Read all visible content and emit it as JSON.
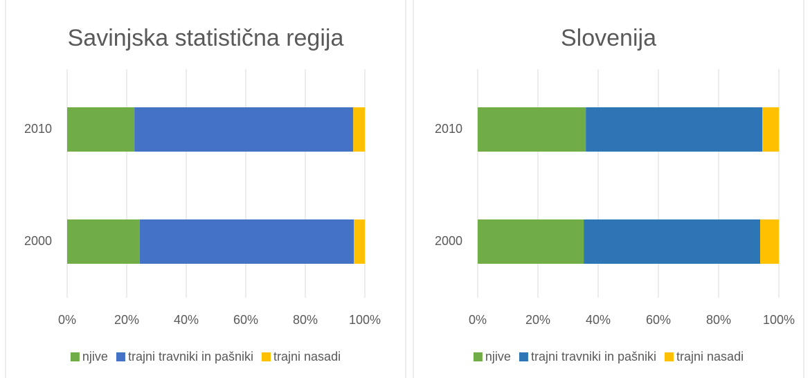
{
  "chart_data": [
    {
      "type": "stacked_bar_horizontal",
      "title": "Savinjska statistična regija",
      "categories": [
        "2010",
        "2000"
      ],
      "series": [
        {
          "name": "njive",
          "color": "#70ad47",
          "values": [
            22.6,
            24.4
          ]
        },
        {
          "name": "trajni travniki in pašniki",
          "color": "#4472c4",
          "values": [
            73.5,
            71.9
          ]
        },
        {
          "name": "trajni nasadi",
          "color": "#ffc000",
          "values": [
            3.9,
            3.7
          ]
        }
      ],
      "xlim": [
        0,
        100
      ],
      "xticks": [
        {
          "value": 0,
          "label": "0%"
        },
        {
          "value": 20,
          "label": "20%"
        },
        {
          "value": 40,
          "label": "40%"
        },
        {
          "value": 60,
          "label": "60%"
        },
        {
          "value": 80,
          "label": "80%"
        },
        {
          "value": 100,
          "label": "100%"
        }
      ],
      "grid": true,
      "legend": "bottom"
    },
    {
      "type": "stacked_bar_horizontal",
      "title": "Slovenija",
      "categories": [
        "2010",
        "2000"
      ],
      "series": [
        {
          "name": "njive",
          "color": "#70ad47",
          "values": [
            35.9,
            35.2
          ]
        },
        {
          "name": "trajni travniki in pašniki",
          "color": "#2e75b6",
          "values": [
            58.6,
            58.6
          ]
        },
        {
          "name": "trajni nasadi",
          "color": "#ffc000",
          "values": [
            5.5,
            6.2
          ]
        }
      ],
      "xlim": [
        0,
        100
      ],
      "xticks": [
        {
          "value": 0,
          "label": "0%"
        },
        {
          "value": 20,
          "label": "20%"
        },
        {
          "value": 40,
          "label": "40%"
        },
        {
          "value": 60,
          "label": "60%"
        },
        {
          "value": 80,
          "label": "80%"
        },
        {
          "value": 100,
          "label": "100%"
        }
      ],
      "grid": true,
      "legend": "bottom"
    }
  ]
}
